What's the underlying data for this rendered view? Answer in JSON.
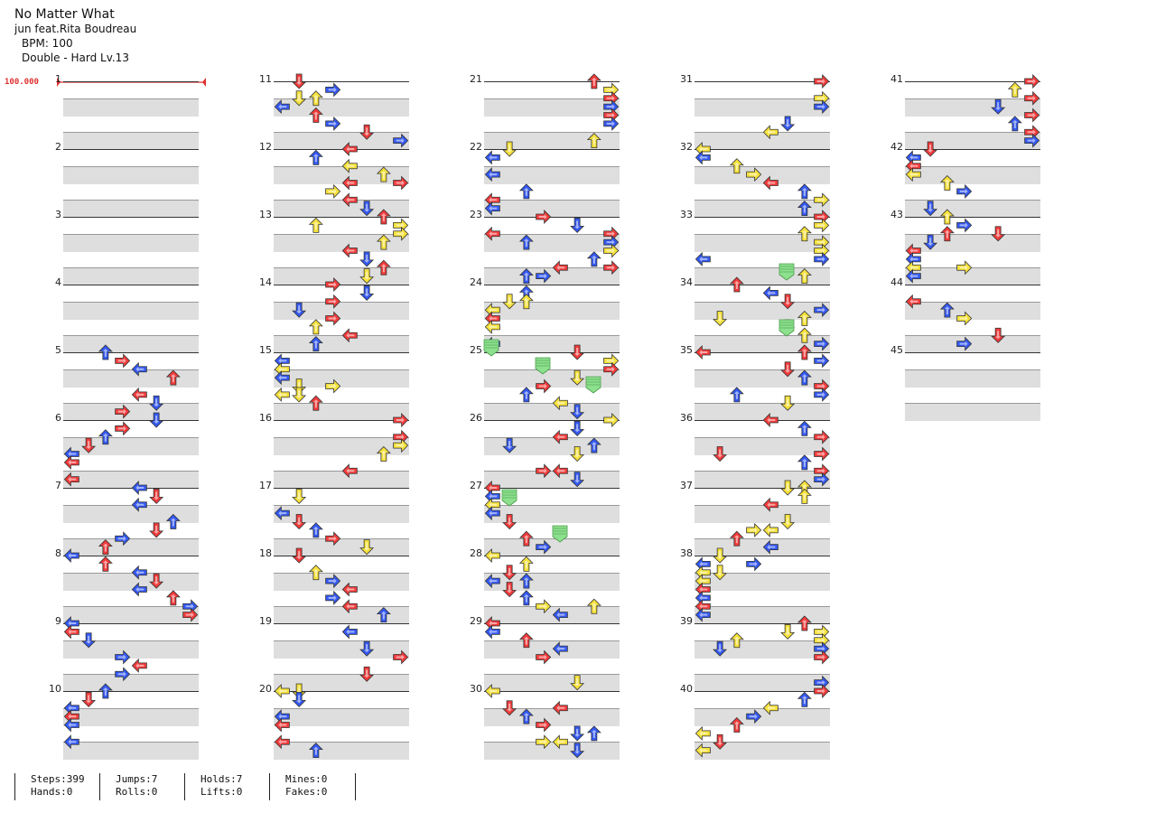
{
  "header": {
    "title": "No Matter What",
    "artist": "jun feat.Rita Boudreau",
    "bpm": "BPM: 100",
    "difficulty": "Double - Hard Lv.13"
  },
  "bpm_marker": "100.000",
  "measure_labels": [
    "1",
    "2",
    "3",
    "4",
    "5",
    "6",
    "7",
    "8",
    "9",
    "10",
    "11",
    "12",
    "13",
    "14",
    "15",
    "16",
    "17",
    "18",
    "19",
    "20",
    "21",
    "22",
    "23",
    "24",
    "25",
    "26",
    "27",
    "28",
    "29",
    "30",
    "31",
    "32",
    "33",
    "34",
    "35",
    "36",
    "37",
    "38",
    "39",
    "40",
    "41",
    "42",
    "43",
    "44",
    "45"
  ],
  "stats": {
    "steps": "Steps:399",
    "jumps": "Jumps:7",
    "holds": "Holds:7",
    "mines": "Mines:0",
    "hands": "Hands:0",
    "rolls": "Rolls:0",
    "lifts": "Lifts:0",
    "fakes": "Fakes:0"
  },
  "colors": {
    "red": "#f03a3a",
    "blue": "#3358f0",
    "yellow": "#f5e13a",
    "green": "#8de08d",
    "stripe": "#dedede",
    "bpm": "#e03030"
  },
  "note_pattern": "stream",
  "icons": {
    "left": "left-arrow-icon",
    "down": "down-arrow-icon",
    "up": "up-arrow-icon",
    "right": "right-arrow-icon",
    "hold": "hold-icon"
  }
}
